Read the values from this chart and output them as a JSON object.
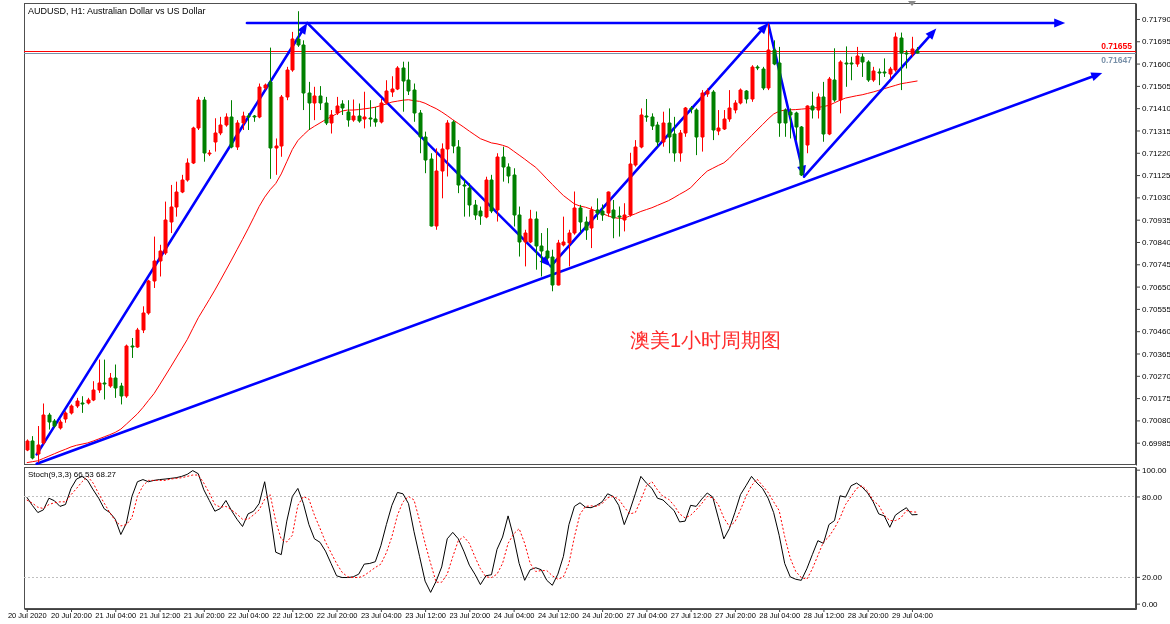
{
  "chart_data": [
    {
      "type": "candlestick",
      "title": "AUDUSD, H1: Australian Dollar vs US Dollar",
      "annotations": [
        "澳美1小时周期图"
      ],
      "categories": [
        null,
        null,
        null,
        null,
        null,
        null,
        null,
        null,
        null,
        null,
        null,
        null,
        null,
        null,
        null,
        null,
        null,
        null,
        null,
        null,
        null,
        null,
        null,
        null,
        null,
        null,
        null,
        null,
        null,
        null,
        null,
        null,
        null,
        null,
        null,
        null,
        null,
        null,
        null,
        null,
        null,
        null,
        null,
        null,
        null,
        null,
        null,
        null,
        null,
        null,
        null,
        null,
        null,
        null,
        null,
        null,
        null,
        null,
        null,
        null,
        null,
        null,
        null,
        null,
        null,
        null,
        null,
        null,
        null,
        null,
        null,
        null,
        null,
        null,
        null,
        null,
        null,
        null,
        null,
        null,
        null,
        null,
        null,
        null,
        null,
        null,
        null,
        null,
        null,
        null,
        null,
        null,
        null,
        null,
        null,
        null,
        null,
        null,
        null,
        null,
        null,
        null,
        null,
        null,
        null,
        null,
        null,
        null,
        null,
        null,
        null,
        null,
        null,
        null,
        null,
        null,
        null,
        null,
        null,
        null,
        null,
        null,
        null,
        null,
        null,
        null,
        null,
        null,
        null,
        null,
        null,
        null,
        null,
        null,
        null,
        null,
        null,
        null,
        null,
        null,
        null,
        null,
        null,
        null,
        null,
        null,
        null,
        null,
        null,
        null,
        null,
        null,
        null,
        null,
        null,
        null,
        null,
        null,
        null,
        null,
        null,
        null,
        null,
        null,
        null,
        null,
        null,
        null,
        null,
        null,
        null,
        null,
        null,
        null,
        null,
        null,
        null,
        null,
        null,
        null,
        null,
        null,
        null,
        null,
        null,
        null,
        null,
        null,
        null,
        null,
        null,
        null,
        null,
        null,
        null,
        null,
        null,
        null,
        null,
        null,
        null
      ],
      "ohlc": [
        [
          0.69956,
          0.69999,
          0.69949,
          0.69992
        ],
        [
          0.69992,
          0.70013,
          0.69914,
          0.69921
        ],
        [
          0.69935,
          0.70056,
          0.699,
          0.69977
        ],
        [
          0.69985,
          0.70152,
          0.69977,
          0.70101
        ],
        [
          0.70101,
          0.70112,
          0.70041,
          0.70073
        ],
        [
          0.70077,
          0.70086,
          0.70049,
          0.70056
        ],
        [
          0.70049,
          0.70084,
          0.70041,
          0.70073
        ],
        [
          0.70084,
          0.70119,
          0.7007,
          0.70112
        ],
        [
          0.70112,
          0.70148,
          0.70105,
          0.7014
        ],
        [
          0.7014,
          0.70176,
          0.70133,
          0.70162
        ],
        [
          0.70156,
          0.70183,
          0.70112,
          0.70153
        ],
        [
          0.70155,
          0.70176,
          0.70148,
          0.70169
        ],
        [
          0.70169,
          0.70247,
          0.70162,
          0.70211
        ],
        [
          0.70211,
          0.70339,
          0.70197,
          0.7024
        ],
        [
          0.70238,
          0.70339,
          0.70169,
          0.70235
        ],
        [
          0.70226,
          0.70282,
          0.70219,
          0.70261
        ],
        [
          0.70261,
          0.70318,
          0.70176,
          0.70219
        ],
        [
          0.70226,
          0.7024,
          0.70148,
          0.70183
        ],
        [
          0.70183,
          0.70403,
          0.70176,
          0.70396
        ],
        [
          0.70397,
          0.70431,
          0.70346,
          0.70393
        ],
        [
          0.70393,
          0.70474,
          0.70389,
          0.70467
        ],
        [
          0.70467,
          0.70566,
          0.70452,
          0.70537
        ],
        [
          0.70537,
          0.70679,
          0.7053,
          0.70672
        ],
        [
          0.70672,
          0.70863,
          0.70644,
          0.70757
        ],
        [
          0.70757,
          0.70828,
          0.70693,
          0.708
        ],
        [
          0.70793,
          0.71012,
          0.70785,
          0.70934
        ],
        [
          0.70927,
          0.71083,
          0.70878,
          0.70991
        ],
        [
          0.70991,
          0.71097,
          0.70948,
          0.71055
        ],
        [
          0.71055,
          0.71126,
          0.71048,
          0.71104
        ],
        [
          0.71104,
          0.71196,
          0.71097,
          0.71175
        ],
        [
          0.71175,
          0.71331,
          0.71172,
          0.71324
        ],
        [
          0.71324,
          0.71458,
          0.71317,
          0.71444
        ],
        [
          0.71444,
          0.71458,
          0.71182,
          0.71218
        ],
        [
          0.71215,
          0.71232,
          0.71206,
          0.7122
        ],
        [
          0.71267,
          0.71367,
          0.71225,
          0.71305
        ],
        [
          0.71305,
          0.71373,
          0.71295,
          0.71338
        ],
        [
          0.71338,
          0.71388,
          0.71331,
          0.71373
        ],
        [
          0.71373,
          0.71444,
          0.71239,
          0.71246
        ],
        [
          0.71246,
          0.71359,
          0.71232,
          0.71348
        ],
        [
          0.71348,
          0.71395,
          0.71317,
          0.71376
        ],
        [
          0.71378,
          0.71388,
          0.71317,
          0.71373
        ],
        [
          0.71375,
          0.71381,
          0.71352,
          0.71371
        ],
        [
          0.71373,
          0.71515,
          0.71367,
          0.71501
        ],
        [
          0.71498,
          0.71515,
          0.71487,
          0.71508
        ],
        [
          0.71522,
          0.71668,
          0.71109,
          0.71239
        ],
        [
          0.71239,
          0.71281,
          0.71126,
          0.7125
        ],
        [
          0.7125,
          0.71466,
          0.71203,
          0.71456
        ],
        [
          0.71456,
          0.71586,
          0.71444,
          0.71572
        ],
        [
          0.71572,
          0.71735,
          0.71565,
          0.71706
        ],
        [
          0.71706,
          0.71823,
          0.71671,
          0.71678
        ],
        [
          0.71678,
          0.71699,
          0.71402,
          0.71473
        ],
        [
          0.71473,
          0.71522,
          0.71317,
          0.71433
        ],
        [
          0.71433,
          0.71501,
          0.71359,
          0.71461
        ],
        [
          0.71461,
          0.71504,
          0.71402,
          0.7143
        ],
        [
          0.7143,
          0.71458,
          0.71338,
          0.71345
        ],
        [
          0.71345,
          0.71402,
          0.71302,
          0.71381
        ],
        [
          0.71388,
          0.71458,
          0.71381,
          0.71419
        ],
        [
          0.71426,
          0.71444,
          0.71381,
          0.71412
        ],
        [
          0.71395,
          0.71444,
          0.71331,
          0.71359
        ],
        [
          0.71359,
          0.71447,
          0.71352,
          0.71376
        ],
        [
          0.71376,
          0.7143,
          0.71348,
          0.71356
        ],
        [
          0.71362,
          0.7148,
          0.71324,
          0.71371
        ],
        [
          0.71368,
          0.71444,
          0.71331,
          0.71365
        ],
        [
          0.71366,
          0.71415,
          0.71331,
          0.71352
        ],
        [
          0.71352,
          0.71449,
          0.71345,
          0.71433
        ],
        [
          0.71433,
          0.71529,
          0.71426,
          0.71484
        ],
        [
          0.7148,
          0.71546,
          0.71458,
          0.7149
        ],
        [
          0.7149,
          0.71589,
          0.71487,
          0.71579
        ],
        [
          0.71579,
          0.71608,
          0.71395,
          0.71527
        ],
        [
          0.71529,
          0.71608,
          0.71466,
          0.71484
        ],
        [
          0.71487,
          0.71515,
          0.71352,
          0.71388
        ],
        [
          0.71388,
          0.71402,
          0.71218,
          0.71288
        ],
        [
          0.71288,
          0.7131,
          0.71133,
          0.71189
        ],
        [
          0.71192,
          0.71218,
          0.70906,
          0.70909
        ],
        [
          0.70909,
          0.71239,
          0.70892,
          0.71144
        ],
        [
          0.71144,
          0.7126,
          0.71026,
          0.71235
        ],
        [
          0.71235,
          0.71359,
          0.71119,
          0.71348
        ],
        [
          0.71351,
          0.71359,
          0.71218,
          0.71248
        ],
        [
          0.71246,
          0.71274,
          0.71048,
          0.71083
        ],
        [
          0.71084,
          0.71104,
          0.70948,
          0.7108
        ],
        [
          0.71069,
          0.7109,
          0.70948,
          0.70998
        ],
        [
          0.70998,
          0.71019,
          0.70934,
          0.70955
        ],
        [
          0.70974,
          0.70991,
          0.70913,
          0.70951
        ],
        [
          0.70948,
          0.71118,
          0.70941,
          0.71104
        ],
        [
          0.71104,
          0.71126,
          0.70963,
          0.70974
        ],
        [
          0.70977,
          0.71218,
          0.70927,
          0.71203
        ],
        [
          0.71203,
          0.71246,
          0.71097,
          0.71161
        ],
        [
          0.71161,
          0.71175,
          0.7109,
          0.71121
        ],
        [
          0.71126,
          0.71154,
          0.70906,
          0.70955
        ],
        [
          0.70955,
          0.70991,
          0.70778,
          0.70838
        ],
        [
          0.70838,
          0.70892,
          0.70736,
          0.70878
        ],
        [
          0.70842,
          0.70977,
          0.70835,
          0.70937
        ],
        [
          0.70937,
          0.7097,
          0.70722,
          0.70821
        ],
        [
          0.70821,
          0.70878,
          0.70693,
          0.708
        ],
        [
          0.708,
          0.70899,
          0.70764,
          0.70771
        ],
        [
          0.70775,
          0.70807,
          0.7063,
          0.70658
        ],
        [
          0.70658,
          0.70849,
          0.70655,
          0.70835
        ],
        [
          0.70828,
          0.70948,
          0.70821,
          0.70838
        ],
        [
          0.70835,
          0.70892,
          0.70736,
          0.70878
        ],
        [
          0.70878,
          0.71055,
          0.70871,
          0.70983
        ],
        [
          0.70983,
          0.70998,
          0.70878,
          0.70923
        ],
        [
          0.70927,
          0.70948,
          0.70849,
          0.70892
        ],
        [
          0.70899,
          0.70991,
          0.70814,
          0.70977
        ],
        [
          0.70977,
          0.71026,
          0.70934,
          0.70963
        ],
        [
          0.7097,
          0.71,
          0.7093,
          0.70955
        ],
        [
          0.70963,
          0.71055,
          0.70948,
          0.71051
        ],
        [
          0.70977,
          0.71019,
          0.70856,
          0.70941
        ],
        [
          0.70949,
          0.70991,
          0.70863,
          0.70945
        ],
        [
          0.70934,
          0.71005,
          0.70885,
          0.70955
        ],
        [
          0.70955,
          0.7122,
          0.70948,
          0.71172
        ],
        [
          0.71168,
          0.71274,
          0.71161,
          0.71246
        ],
        [
          0.71246,
          0.71409,
          0.71239,
          0.71381
        ],
        [
          0.71375,
          0.71449,
          0.71352,
          0.71371
        ],
        [
          0.71371,
          0.71388,
          0.71317,
          0.71334
        ],
        [
          0.71338,
          0.71352,
          0.71246,
          0.71267
        ],
        [
          0.71267,
          0.71395,
          0.71246,
          0.71348
        ],
        [
          0.71348,
          0.71409,
          0.71218,
          0.71288
        ],
        [
          0.71302,
          0.71373,
          0.71182,
          0.7122
        ],
        [
          0.7122,
          0.71317,
          0.71182,
          0.71305
        ],
        [
          0.71305,
          0.71415,
          0.71288,
          0.71409
        ],
        [
          0.7141,
          0.71419,
          0.71388,
          0.71406
        ],
        [
          0.71404,
          0.71409,
          0.7121,
          0.71288
        ],
        [
          0.71288,
          0.71487,
          0.71225,
          0.71473
        ],
        [
          0.7147,
          0.71494,
          0.71458,
          0.71484
        ],
        [
          0.7148,
          0.71487,
          0.71274,
          0.71317
        ],
        [
          0.71314,
          0.71402,
          0.71295,
          0.71324
        ],
        [
          0.7132,
          0.71402,
          0.71317,
          0.71366
        ],
        [
          0.71366,
          0.71487,
          0.71352,
          0.71409
        ],
        [
          0.71402,
          0.71444,
          0.71388,
          0.7143
        ],
        [
          0.7143,
          0.71494,
          0.71426,
          0.71487
        ],
        [
          0.71484,
          0.71487,
          0.7143,
          0.71447
        ],
        [
          0.71447,
          0.71593,
          0.71437,
          0.71586
        ],
        [
          0.71587,
          0.71593,
          0.71572,
          0.71583
        ],
        [
          0.71575,
          0.71586,
          0.71487,
          0.71494
        ],
        [
          0.71494,
          0.7177,
          0.71487,
          0.71657
        ],
        [
          0.71657,
          0.71699,
          0.71593,
          0.716
        ],
        [
          0.71603,
          0.71671,
          0.71288,
          0.71345
        ],
        [
          0.71402,
          0.71409,
          0.71288,
          0.71345
        ],
        [
          0.71395,
          0.71409,
          0.71281,
          0.71381
        ],
        [
          0.71391,
          0.71395,
          0.71274,
          0.71331
        ],
        [
          0.71328,
          0.71334,
          0.71121,
          0.71126
        ],
        [
          0.71253,
          0.71422,
          0.71218,
          0.71419
        ],
        [
          0.71419,
          0.7148,
          0.71366,
          0.71402
        ],
        [
          0.71402,
          0.71473,
          0.71366,
          0.71456
        ],
        [
          0.71456,
          0.71522,
          0.71267,
          0.71302
        ],
        [
          0.71302,
          0.71543,
          0.71295,
          0.71536
        ],
        [
          0.71532,
          0.71665,
          0.71437,
          0.71444
        ],
        [
          0.71444,
          0.71614,
          0.71388,
          0.71608
        ],
        [
          0.71602,
          0.71673,
          0.71501,
          0.71597
        ],
        [
          0.71604,
          0.71629,
          0.71529,
          0.716
        ],
        [
          0.716,
          0.71671,
          0.71586,
          0.71631
        ],
        [
          0.71629,
          0.71643,
          0.71543,
          0.71608
        ],
        [
          0.71608,
          0.71614,
          0.71522,
          0.71532
        ],
        [
          0.71532,
          0.71586,
          0.71522,
          0.71569
        ],
        [
          0.71562,
          0.71579,
          0.71508,
          0.71558
        ],
        [
          0.71562,
          0.71622,
          0.71543,
          0.71558
        ],
        [
          0.71555,
          0.71586,
          0.71536,
          0.71575
        ],
        [
          0.71572,
          0.71732,
          0.71565,
          0.71714
        ],
        [
          0.7171,
          0.71732,
          0.71487,
          0.71643
        ],
        [
          0.71647,
          0.71657,
          0.71579,
          0.71643
        ],
        [
          0.71639,
          0.71714,
          0.71629,
          0.71664
        ],
        [
          0.71655,
          0.7167,
          0.71643,
          0.71647
        ],
        null,
        null,
        null,
        null,
        null,
        null,
        null,
        null,
        null,
        null,
        null,
        null,
        null,
        null,
        null,
        null,
        null,
        null,
        null,
        null,
        null,
        null,
        null,
        null,
        null,
        null,
        null,
        null,
        null,
        null,
        null,
        null,
        null,
        null,
        null,
        null,
        null,
        null,
        null
      ],
      "colors": [
        "#ff0000",
        "#008000",
        "#ff0000",
        "#ff0000",
        "#008000",
        "#008000",
        "#ff0000",
        "#ff0000",
        "#ff0000",
        "#ff0000",
        "#008000",
        "#ff0000",
        "#ff0000",
        "#ff0000",
        "#008000",
        "#ff0000",
        "#008000",
        "#008000",
        "#ff0000",
        "#008000",
        "#ff0000",
        "#ff0000",
        "#ff0000",
        "#ff0000",
        "#ff0000",
        "#ff0000",
        "#ff0000",
        "#ff0000",
        "#ff0000",
        "#ff0000",
        "#ff0000",
        "#ff0000",
        "#008000",
        "#ff0000",
        "#ff0000",
        "#ff0000",
        "#ff0000",
        "#008000",
        "#ff0000",
        "#ff0000",
        "#008000",
        "#008000",
        "#ff0000",
        "#ff0000",
        "#008000",
        "#ff0000",
        "#ff0000",
        "#ff0000",
        "#ff0000",
        "#008000",
        "#008000",
        "#008000",
        "#ff0000",
        "#008000",
        "#008000",
        "#ff0000",
        "#ff0000",
        "#008000",
        "#008000",
        "#ff0000",
        "#008000",
        "#ff0000",
        "#008000",
        "#008000",
        "#ff0000",
        "#ff0000",
        "#ff0000",
        "#ff0000",
        "#008000",
        "#008000",
        "#008000",
        "#008000",
        "#008000",
        "#008000",
        "#ff0000",
        "#ff0000",
        "#ff0000",
        "#008000",
        "#008000",
        "#008000",
        "#008000",
        "#008000",
        "#008000",
        "#ff0000",
        "#008000",
        "#ff0000",
        "#008000",
        "#008000",
        "#008000",
        "#008000",
        "#ff0000",
        "#ff0000",
        "#008000",
        "#008000",
        "#008000",
        "#008000",
        "#ff0000",
        "#ff0000",
        "#ff0000",
        "#ff0000",
        "#008000",
        "#008000",
        "#ff0000",
        "#008000",
        "#008000",
        "#ff0000",
        "#008000",
        "#008000",
        "#ff0000",
        "#ff0000",
        "#ff0000",
        "#ff0000",
        "#008000",
        "#008000",
        "#008000",
        "#ff0000",
        "#008000",
        "#008000",
        "#ff0000",
        "#ff0000",
        "#008000",
        "#008000",
        "#ff0000",
        "#ff0000",
        "#008000",
        "#ff0000",
        "#ff0000",
        "#ff0000",
        "#ff0000",
        "#ff0000",
        "#008000",
        "#ff0000",
        "#008000",
        "#008000",
        "#ff0000",
        "#008000",
        "#008000",
        "#008000",
        "#008000",
        "#008000",
        "#008000",
        "#ff0000",
        "#008000",
        "#ff0000",
        "#008000",
        "#ff0000",
        "#008000",
        "#ff0000",
        "#008000",
        "#008000",
        "#ff0000",
        "#008000",
        "#008000",
        "#ff0000",
        "#008000",
        "#008000",
        "#ff0000",
        "#ff0000",
        "#008000",
        "#008000",
        "#ff0000",
        "#008000",
        null,
        null,
        null,
        null,
        null,
        null,
        null,
        null,
        null,
        null,
        null,
        null,
        null,
        null,
        null,
        null,
        null,
        null,
        null,
        null,
        null,
        null,
        null,
        null,
        null,
        null,
        null,
        null,
        null,
        null,
        null,
        null,
        null,
        null,
        null,
        null,
        null,
        null,
        null
      ],
      "series": [
        {
          "type": "line",
          "color": "#ff0000",
          "values": [
            0.699,
            0.69904,
            0.69908,
            0.69918,
            0.69928,
            0.69938,
            0.69948,
            0.69957,
            0.69967,
            0.69974,
            0.69979,
            0.69984,
            0.69992,
            0.70001,
            0.7001,
            0.70019,
            0.70029,
            0.70043,
            0.70064,
            0.70086,
            0.70108,
            0.70135,
            0.70165,
            0.70194,
            0.70231,
            0.70269,
            0.70307,
            0.70346,
            0.70385,
            0.70424,
            0.70471,
            0.70517,
            0.70556,
            0.70595,
            0.70635,
            0.70677,
            0.7072,
            0.70763,
            0.70807,
            0.70851,
            0.70896,
            0.70943,
            0.70991,
            0.71031,
            0.71063,
            0.71089,
            0.7113,
            0.71182,
            0.71234,
            0.71272,
            0.71296,
            0.71318,
            0.71333,
            0.71347,
            0.71361,
            0.71373,
            0.71386,
            0.71398,
            0.71402,
            0.71402,
            0.71404,
            0.71407,
            0.7141,
            0.71414,
            0.71421,
            0.71428,
            0.71436,
            0.7144,
            0.71444,
            0.71446,
            0.71442,
            0.71439,
            0.71431,
            0.71419,
            0.71408,
            0.71394,
            0.71378,
            0.71361,
            0.71345,
            0.71329,
            0.71312,
            0.71296,
            0.7128,
            0.71271,
            0.71262,
            0.71258,
            0.71252,
            0.71244,
            0.71227,
            0.7121,
            0.71193,
            0.71175,
            0.71158,
            0.71134,
            0.71109,
            0.71085,
            0.71061,
            0.71038,
            0.7102,
            0.71002,
            0.70993,
            0.70988,
            0.7098,
            0.70971,
            0.70961,
            0.70952,
            0.70944,
            0.70941,
            0.70941,
            0.70951,
            0.7096,
            0.7097,
            0.70978,
            0.70986,
            0.70996,
            0.71006,
            0.71016,
            0.71029,
            0.71043,
            0.71056,
            0.71071,
            0.71096,
            0.7112,
            0.71142,
            0.71154,
            0.71166,
            0.71177,
            0.71197,
            0.71222,
            0.71246,
            0.71269,
            0.71293,
            0.71317,
            0.7134,
            0.71364,
            0.71385,
            0.71397,
            0.71402,
            0.71403,
            0.71404,
            0.71406,
            0.71408,
            0.7141,
            0.71413,
            0.71417,
            0.71422,
            0.71433,
            0.71444,
            0.71453,
            0.71458,
            0.71463,
            0.71467,
            0.71473,
            0.71479,
            0.71486,
            0.71493,
            0.715,
            0.71507,
            0.71514,
            0.71518,
            0.71522,
            0.71526,
            null,
            null,
            null,
            null,
            null,
            null,
            null,
            null,
            null,
            null,
            null,
            null,
            null,
            null,
            null,
            null,
            null,
            null,
            null,
            null,
            null,
            null,
            null,
            null,
            null,
            null,
            null,
            null,
            null,
            null,
            null,
            null,
            null,
            null,
            null,
            null,
            null,
            null,
            null
          ]
        }
      ],
      "ylim": [
        0.6989,
        0.71858
      ],
      "yticks": [
        0.69985,
        {
          "value": 0.7008,
          "label": "0.70080"
        },
        0.70175,
        {
          "value": 0.7027,
          "label": "0.70270"
        },
        0.70365,
        {
          "value": 0.7046,
          "label": "0.70460"
        },
        0.70555,
        {
          "value": 0.7065,
          "label": "0.70650"
        },
        0.70745,
        {
          "value": 0.7084,
          "label": "0.70840"
        },
        0.70935,
        {
          "value": 0.7103,
          "label": "0.71030"
        },
        0.71125,
        {
          "value": 0.7122,
          "label": "0.71220"
        },
        0.71315,
        {
          "value": 0.7141,
          "label": "0.71410"
        },
        0.71505,
        {
          "value": 0.716,
          "label": "0.71600"
        },
        0.71695,
        {
          "value": 0.7179,
          "label": "0.71790"
        }
      ],
      "ref_lines": [
        {
          "axis": "y",
          "value": 0.71655,
          "label": "0.71655",
          "color": "#ff0000"
        },
        {
          "axis": "y",
          "value": 0.71647,
          "label": "0.71647",
          "color": "#7890a8"
        }
      ],
      "tick_labels": "y"
    },
    {
      "type": "line",
      "title": "Stoch(9,3,3) 66.53 68.27",
      "categories": [
        "20 Jul 2020",
        null,
        null,
        null,
        null,
        null,
        null,
        null,
        "20 Jul 20:00",
        null,
        null,
        null,
        null,
        null,
        null,
        null,
        "21 Jul 04:00",
        null,
        null,
        null,
        null,
        null,
        null,
        null,
        "21 Jul 12:00",
        null,
        null,
        null,
        null,
        null,
        null,
        null,
        "21 Jul 20:00",
        null,
        null,
        null,
        null,
        null,
        null,
        null,
        "22 Jul 04:00",
        null,
        null,
        null,
        null,
        null,
        null,
        null,
        "22 Jul 12:00",
        null,
        null,
        null,
        null,
        null,
        null,
        null,
        "22 Jul 20:00",
        null,
        null,
        null,
        null,
        null,
        null,
        null,
        "23 Jul 04:00",
        null,
        null,
        null,
        null,
        null,
        null,
        null,
        "23 Jul 12:00",
        null,
        null,
        null,
        null,
        null,
        null,
        null,
        "23 Jul 20:00",
        null,
        null,
        null,
        null,
        null,
        null,
        null,
        "24 Jul 04:00",
        null,
        null,
        null,
        null,
        null,
        null,
        null,
        "24 Jul 12:00",
        null,
        null,
        null,
        null,
        null,
        null,
        null,
        "24 Jul 20:00",
        null,
        null,
        null,
        null,
        null,
        null,
        null,
        "27 Jul 04:00",
        null,
        null,
        null,
        null,
        null,
        null,
        null,
        "27 Jul 12:00",
        null,
        null,
        null,
        null,
        null,
        null,
        null,
        "27 Jul 20:00",
        null,
        null,
        null,
        null,
        null,
        null,
        null,
        "28 Jul 04:00",
        null,
        null,
        null,
        null,
        null,
        null,
        null,
        "28 Jul 12:00",
        null,
        null,
        null,
        null,
        null,
        null,
        null,
        "28 Jul 20:00",
        null,
        null,
        null,
        null,
        null,
        null,
        null,
        "29 Jul 04:00",
        null,
        null,
        null,
        null,
        null,
        null,
        null,
        null,
        null,
        null,
        null,
        null,
        null,
        null,
        null,
        null,
        null,
        null,
        null,
        null,
        null,
        null,
        null,
        null,
        null,
        null,
        null,
        null,
        null,
        null,
        null,
        null,
        null,
        null,
        null,
        null,
        null,
        null,
        null,
        null
      ],
      "series": [
        {
          "color": "#000000",
          "values": [
            79.5,
            73.4,
            68,
            70,
            78.7,
            76.8,
            72.6,
            74,
            86,
            93,
            95,
            92,
            85,
            78.7,
            70.8,
            68,
            63,
            51.6,
            60,
            80,
            91,
            92.6,
            91,
            92,
            92.6,
            93,
            93.5,
            94,
            95,
            96.5,
            99.3,
            97,
            85,
            77,
            69,
            71,
            77,
            69.5,
            63,
            57.6,
            67,
            69,
            74.7,
            91,
            67,
            38.4,
            36.6,
            61.6,
            80,
            86,
            74.7,
            59,
            48.4,
            45.8,
            39.2,
            30,
            20.8,
            19.5,
            19.5,
            20,
            22,
            29.5,
            30,
            31.3,
            43.2,
            59,
            73.4,
            83,
            82,
            74.7,
            53.7,
            35.3,
            16.8,
            8.4,
            16.8,
            27.4,
            48.4,
            53.2,
            48.4,
            39.2,
            28.7,
            22,
            14.2,
            20.8,
            21.6,
            40.5,
            49.7,
            65.5,
            49.7,
            30,
            17.4,
            25.3,
            26.8,
            25.3,
            17.4,
            13.7,
            22,
            35.3,
            59,
            72.6,
            75.3,
            72,
            71.6,
            73.4,
            76,
            82,
            80,
            73.4,
            59,
            69.5,
            82,
            95,
            90,
            86,
            78.7,
            77.4,
            73.4,
            69.5,
            61,
            61.6,
            73.4,
            72.6,
            78,
            82.6,
            79.5,
            64,
            48.4,
            56,
            68,
            81.3,
            88,
            95,
            90,
            86,
            78.7,
            68,
            51,
            30,
            20,
            18.2,
            17.4,
            26,
            36.6,
            47,
            45,
            59,
            62,
            80.5,
            79.5,
            88,
            90,
            87,
            82.6,
            76,
            67,
            65.5,
            57,
            66,
            69,
            71.6,
            66.3,
            66.5,
            null,
            null,
            null,
            null,
            null,
            null,
            null,
            null,
            null,
            null,
            null,
            null,
            null,
            null,
            null,
            null,
            null,
            null,
            null,
            null,
            null,
            null,
            null,
            null,
            null,
            null,
            null,
            null,
            null,
            null,
            null,
            null,
            null,
            null,
            null,
            null,
            null,
            null,
            null
          ]
        },
        {
          "color": "#ff0000",
          "line_style": "dotted",
          "values": [
            77.4,
            75,
            72,
            71,
            74,
            75.3,
            76,
            76,
            81.3,
            86,
            91,
            95,
            90,
            82,
            75,
            68,
            62,
            58,
            59,
            64,
            80,
            88,
            92,
            92,
            92,
            92,
            93,
            93.5,
            94,
            95,
            96,
            96,
            90,
            82.6,
            74,
            72,
            72.6,
            70,
            66.8,
            63,
            63,
            66.3,
            70,
            78,
            81.3,
            61.6,
            48,
            46,
            51,
            73.4,
            80,
            78,
            66,
            56.3,
            46,
            38,
            30,
            23.4,
            20,
            19.5,
            19.5,
            21,
            24,
            27,
            29.5,
            38,
            50,
            66,
            76,
            80,
            77.4,
            62,
            45,
            30,
            16,
            16,
            22,
            35,
            47,
            50,
            45,
            35,
            26,
            20,
            19.5,
            22,
            30,
            45,
            52,
            56,
            45,
            30,
            24,
            24.7,
            24.7,
            20.8,
            18.2,
            20,
            30,
            50,
            66.8,
            72.6,
            73,
            72.6,
            74.7,
            79,
            80,
            78,
            72,
            67,
            68,
            77.4,
            88,
            91,
            85,
            80,
            78,
            73.4,
            67,
            64,
            66,
            70,
            74.7,
            80,
            79,
            74,
            64,
            57.6,
            61,
            70,
            80,
            88,
            93,
            88,
            83,
            76,
            69.5,
            50,
            34,
            24,
            19.5,
            18.2,
            26,
            36,
            46,
            50,
            56.3,
            64,
            74,
            80,
            86,
            88,
            84,
            77,
            73.4,
            66,
            62,
            62,
            64,
            69.5,
            68.5,
            68.3,
            null,
            null,
            null,
            null,
            null,
            null,
            null,
            null,
            null,
            null,
            null,
            null,
            null,
            null,
            null,
            null,
            null,
            null,
            null,
            null,
            null,
            null,
            null,
            null,
            null,
            null,
            null,
            null,
            null,
            null,
            null,
            null,
            null,
            null,
            null,
            null,
            null,
            null,
            null
          ]
        }
      ],
      "ylim": [
        -4,
        102
      ],
      "yticks": [
        {
          "value": 0,
          "label": "0.00"
        },
        {
          "value": 20,
          "label": "20.00"
        },
        {
          "value": 80,
          "label": "80.00"
        },
        {
          "value": 100,
          "label": "100.00"
        }
      ],
      "ref_lines": [
        {
          "axis": "y",
          "value": 80,
          "color": "#c0c0c0",
          "line_style": "dotted"
        },
        {
          "axis": "y",
          "value": 20,
          "color": "#c0c0c0",
          "line_style": "dotted"
        }
      ]
    }
  ]
}
